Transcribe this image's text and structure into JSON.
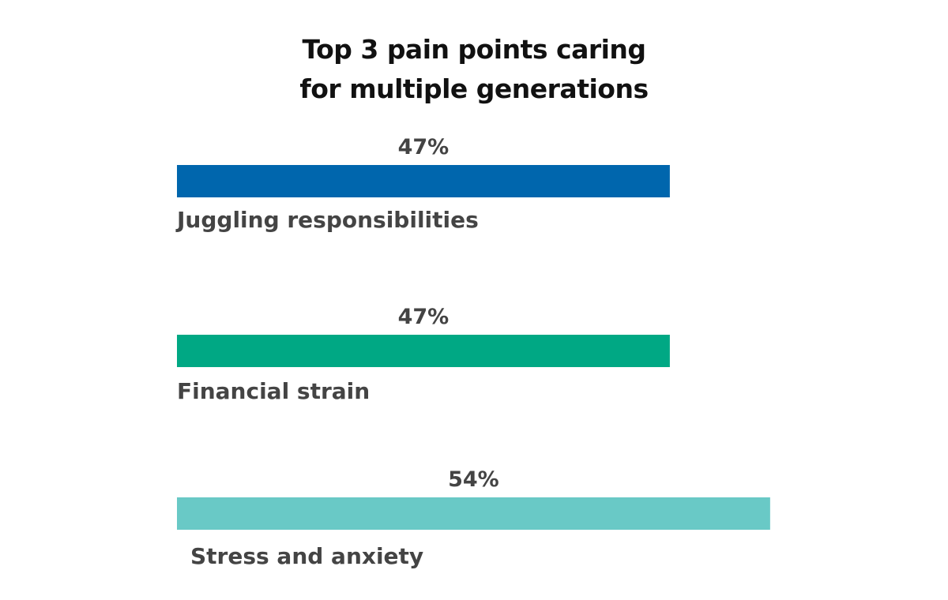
{
  "chart_data": {
    "type": "bar",
    "orientation": "horizontal",
    "title": [
      "Top 3 pain points caring",
      "for multiple generations"
    ],
    "categories": [
      "Juggling responsibilities",
      "Financial strain",
      "Stress and anxiety"
    ],
    "values": [
      47,
      47,
      54
    ],
    "value_labels": [
      "47%",
      "47%",
      "54%"
    ],
    "colors": [
      "#0066ad",
      "#00a884",
      "#69c9c6"
    ],
    "xlabel": "",
    "ylabel": "",
    "grid": false,
    "legend": "none"
  }
}
